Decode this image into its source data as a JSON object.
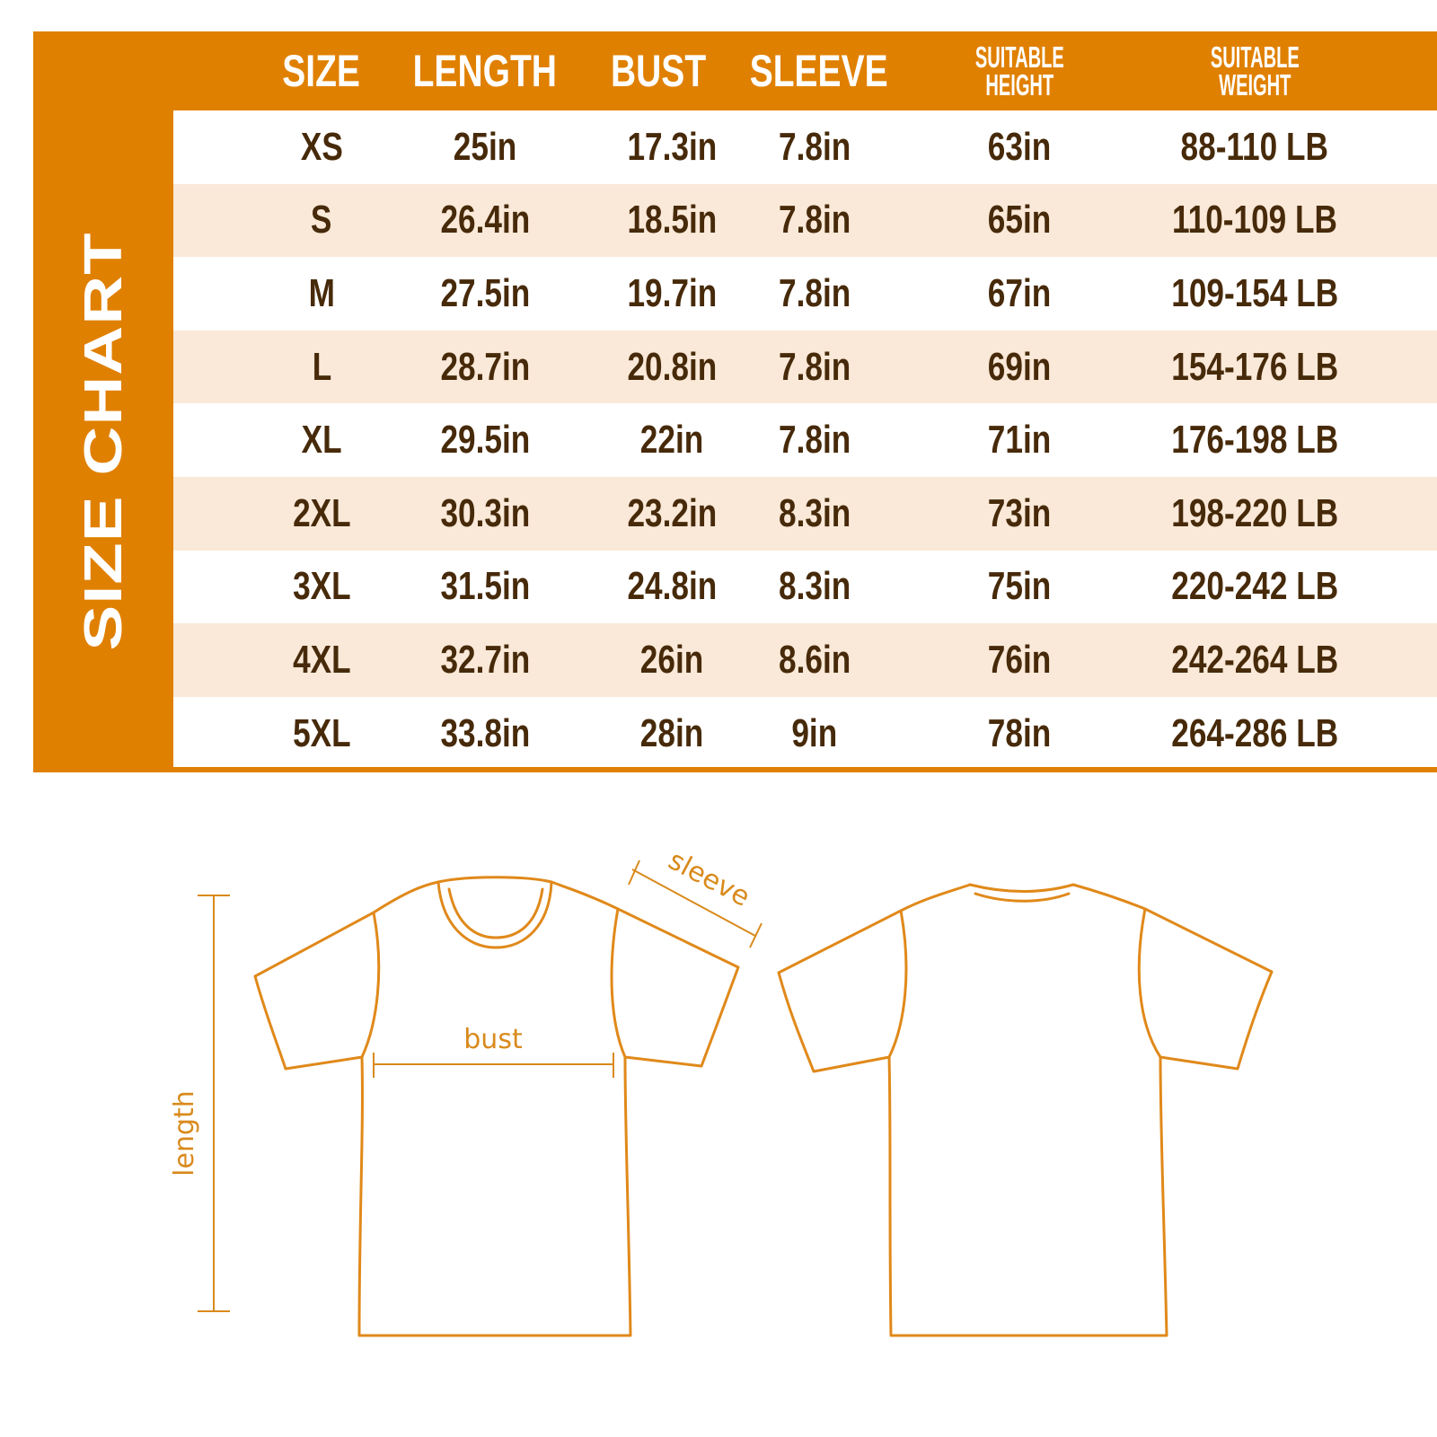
{
  "title": "SIZE CHART",
  "colors": {
    "accent": "#e08000",
    "row_alt": "#fae9d8",
    "text": "#472a0a",
    "outline": "#e0891a"
  },
  "columns": [
    "SIZE",
    "LENGTH",
    "BUST",
    "SLEEVE",
    "SUITABLE HEIGHT",
    "SUITABLE WEIGHT"
  ],
  "columns_split": {
    "height": [
      "SUITABLE",
      "HEIGHT"
    ],
    "weight": [
      "SUITABLE",
      "WEIGHT"
    ]
  },
  "rows": [
    [
      "XS",
      "25in",
      "17.3in",
      "7.8in",
      "63in",
      "88-110 LB"
    ],
    [
      "S",
      "26.4in",
      "18.5in",
      "7.8in",
      "65in",
      "110-109 LB"
    ],
    [
      "M",
      "27.5in",
      "19.7in",
      "7.8in",
      "67in",
      "109-154 LB"
    ],
    [
      "L",
      "28.7in",
      "20.8in",
      "7.8in",
      "69in",
      "154-176 LB"
    ],
    [
      "XL",
      "29.5in",
      "22in",
      "7.8in",
      "71in",
      "176-198 LB"
    ],
    [
      "2XL",
      "30.3in",
      "23.2in",
      "8.3in",
      "73in",
      "198-220 LB"
    ],
    [
      "3XL",
      "31.5in",
      "24.8in",
      "8.3in",
      "75in",
      "220-242 LB"
    ],
    [
      "4XL",
      "32.7in",
      "26in",
      "8.6in",
      "76in",
      "242-264 LB"
    ],
    [
      "5XL",
      "33.8in",
      "28in",
      "9in",
      "78in",
      "264-286 LB"
    ]
  ],
  "diagram": {
    "length_label": "length",
    "bust_label": "bust",
    "sleeve_label": "sleeve"
  }
}
